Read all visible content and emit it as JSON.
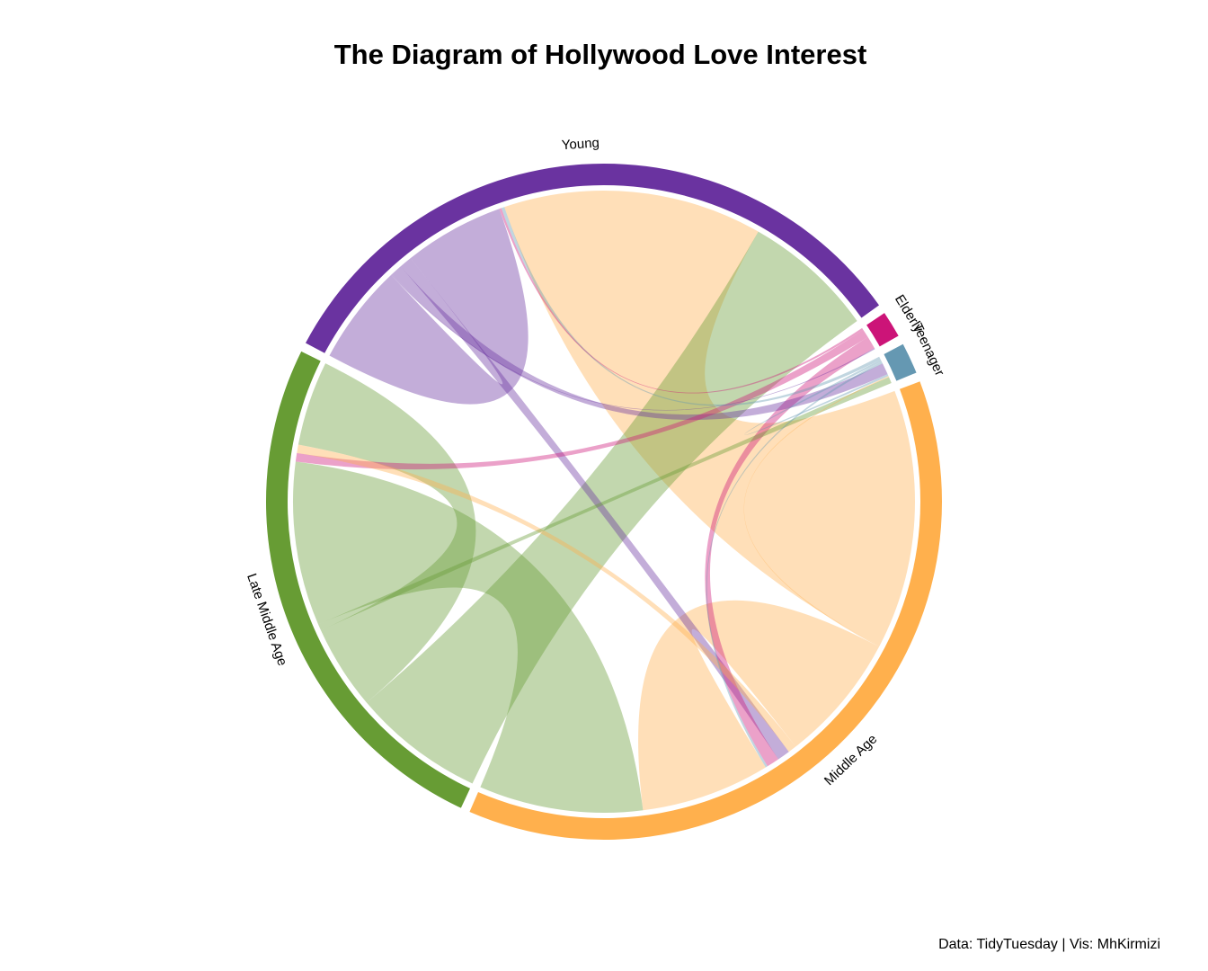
{
  "chart_data": {
    "type": "chord",
    "title": "The Diagram of Hollywood Love Interest",
    "caption": "Data: TidyTuesday | Vis: MhKirmizi",
    "sectors": [
      {
        "name": "Young",
        "color": "#6A33A0"
      },
      {
        "name": "Elderly",
        "color": "#CC1478"
      },
      {
        "name": "Teenager",
        "color": "#6598B2"
      },
      {
        "name": "Middle Age",
        "color": "#FFB04D"
      },
      {
        "name": "Late Middle Age",
        "color": "#679C34"
      }
    ],
    "flows": [
      {
        "from": "Young",
        "to": "Young",
        "value": 95
      },
      {
        "from": "Young",
        "to": "Elderly",
        "value": 1
      },
      {
        "from": "Young",
        "to": "Teenager",
        "value": 11
      },
      {
        "from": "Young",
        "to": "Middle Age",
        "value": 12
      },
      {
        "from": "Elderly",
        "to": "Young",
        "value": 2
      },
      {
        "from": "Elderly",
        "to": "Late Middle Age",
        "value": 8
      },
      {
        "from": "Elderly",
        "to": "Middle Age",
        "value": 12
      },
      {
        "from": "Teenager",
        "to": "Young",
        "value": 3
      },
      {
        "from": "Teenager",
        "to": "Teenager",
        "value": 2
      },
      {
        "from": "Teenager",
        "to": "Middle Age",
        "value": 2
      },
      {
        "from": "Middle Age",
        "to": "Young",
        "value": 245
      },
      {
        "from": "Middle Age",
        "to": "Teenager",
        "value": 1
      },
      {
        "from": "Middle Age",
        "to": "Middle Age",
        "value": 122
      },
      {
        "from": "Middle Age",
        "to": "Late Middle Age",
        "value": 8
      },
      {
        "from": "Late Middle Age",
        "to": "Young",
        "value": 125
      },
      {
        "from": "Late Middle Age",
        "to": "Late Middle Age",
        "value": 80
      },
      {
        "from": "Late Middle Age",
        "to": "Teenager",
        "value": 6
      },
      {
        "from": "Late Middle Age",
        "to": "Middle Age",
        "value": 155
      }
    ]
  }
}
